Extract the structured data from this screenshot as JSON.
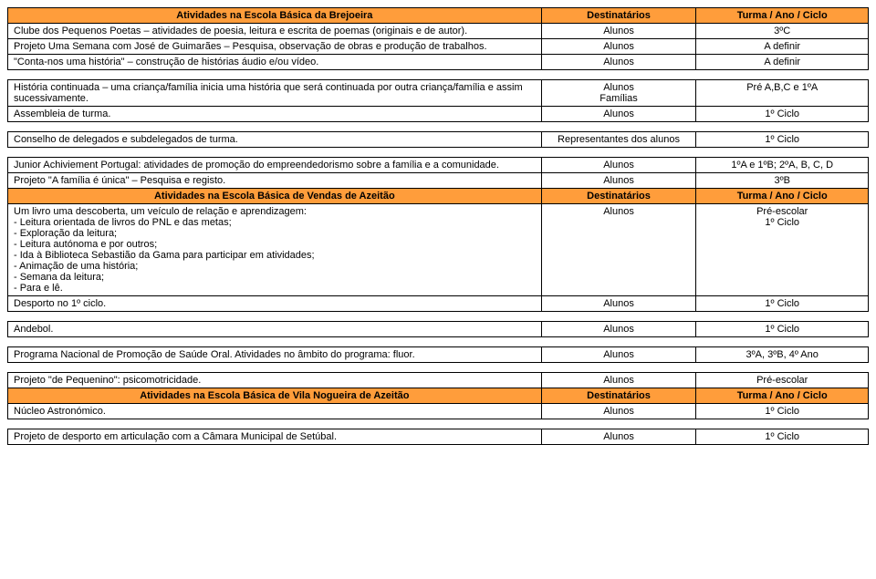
{
  "colors": {
    "header_bg": "#ff9d3b",
    "border": "#000000",
    "text": "#000000",
    "background": "#ffffff"
  },
  "typography": {
    "font_family": "Verdana, Geneva, sans-serif",
    "font_size_pt": 8
  },
  "sections": [
    {
      "header": {
        "c1": "Atividades na Escola Básica da Brejoeira",
        "c2": "Destinatários",
        "c3": "Turma / Ano / Ciclo"
      },
      "rows": [
        {
          "c1": "Clube dos Pequenos Poetas – atividades de poesia, leitura e escrita de poemas (originais e de autor).",
          "c2": "Alunos",
          "c3": "3ºC"
        },
        {
          "c1": "Projeto Uma Semana com José de Guimarães – Pesquisa, observação de obras e produção de trabalhos.",
          "c2": "Alunos",
          "c3": "A definir"
        },
        {
          "c1": "\"Conta-nos uma história\" – construção de histórias áudio e/ou vídeo.",
          "c2": "Alunos",
          "c3": "A definir"
        }
      ]
    },
    {
      "rows": [
        {
          "c1": "História continuada – uma criança/família inicia uma história que será continuada por outra criança/família e assim sucessivamente.",
          "c2": "Alunos\nFamílias",
          "c3": "Pré A,B,C e 1ºA"
        },
        {
          "c1": "Assembleia de turma.",
          "c2": "Alunos",
          "c3": "1º Ciclo"
        }
      ]
    },
    {
      "rows": [
        {
          "c1": "Conselho de delegados e subdelegados de turma.",
          "c2": "Representantes dos alunos",
          "c3": "1º Ciclo"
        }
      ]
    },
    {
      "rows": [
        {
          "c1": "Junior Achiviement Portugal: atividades de promoção do empreendedorismo sobre a família e a comunidade.",
          "c2": "Alunos",
          "c3": "1ºA e 1ºB; 2ºA, B, C, D"
        },
        {
          "c1": "Projeto \"A família é única\" – Pesquisa e registo.",
          "c2": "Alunos",
          "c3": "3ºB",
          "c2_valign": "bottom",
          "c3_valign": "bottom"
        }
      ]
    },
    {
      "header": {
        "c1": "Atividades na Escola Básica de Vendas de Azeitão",
        "c2": "Destinatários",
        "c3": "Turma / Ano / Ciclo"
      },
      "rows": [
        {
          "c1": "Um livro uma descoberta, um veículo de relação e aprendizagem:\n- Leitura orientada de livros do PNL e das metas;\n- Exploração da leitura;\n- Leitura autónoma e por outros;\n- Ida à Biblioteca Sebastião da Gama para participar em atividades;\n- Animação de uma história;\n- Semana da leitura;\n- Para e lê.",
          "c2": "Alunos",
          "c3": "Pré-escolar\n1º Ciclo"
        },
        {
          "c1": "Desporto no 1º ciclo.",
          "c2": "Alunos",
          "c3": "1º Ciclo"
        }
      ]
    },
    {
      "rows": [
        {
          "c1": "Andebol.",
          "c2": "Alunos",
          "c3": "1º Ciclo"
        }
      ]
    },
    {
      "rows": [
        {
          "c1": "Programa Nacional de Promoção de Saúde Oral. Atividades no âmbito do programa: fluor.",
          "c2": "Alunos",
          "c3": "3ºA, 3ºB, 4º Ano"
        }
      ]
    },
    {
      "rows": [
        {
          "c1": "Projeto \"de Pequenino\": psicomotricidade.",
          "c2": "Alunos",
          "c3": "Pré-escolar"
        }
      ]
    },
    {
      "header": {
        "c1": "Atividades na Escola Básica de Vila Nogueira de Azeitão",
        "c2": "Destinatários",
        "c3": "Turma / Ano / Ciclo"
      },
      "rows": [
        {
          "c1": "Núcleo Astronómico.",
          "c2": "Alunos",
          "c3": "1º Ciclo"
        }
      ]
    },
    {
      "rows": [
        {
          "c1": "Projeto de desporto em articulação com a Câmara Municipal de Setúbal.",
          "c2": "Alunos",
          "c3": "1º Ciclo"
        }
      ]
    }
  ]
}
